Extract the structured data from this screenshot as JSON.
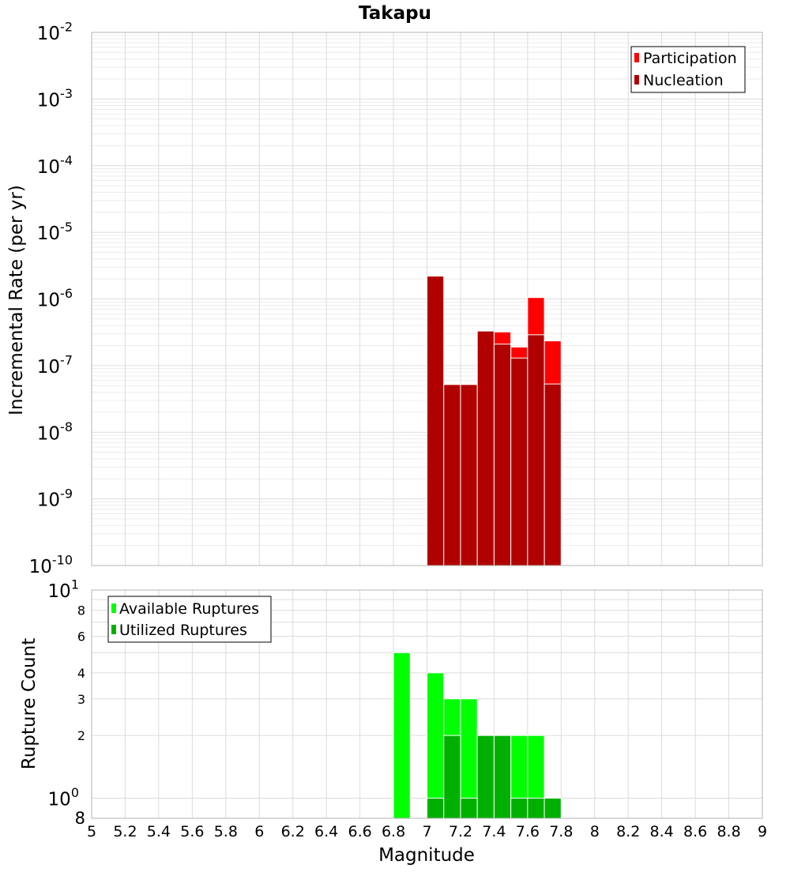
{
  "chart_data": [
    {
      "type": "bar",
      "title": "Takapu",
      "ylabel": "Incremental Rate (per yr)",
      "xlabel": "",
      "yscale": "log",
      "ylim": [
        1e-10,
        0.01
      ],
      "xlim": [
        5,
        9
      ],
      "bin_width": 0.1,
      "y_ticks": [
        {
          "base": "10",
          "exp": "-10"
        },
        {
          "base": "10",
          "exp": "-9"
        },
        {
          "base": "10",
          "exp": "-8"
        },
        {
          "base": "10",
          "exp": "-7"
        },
        {
          "base": "10",
          "exp": "-6"
        },
        {
          "base": "10",
          "exp": "-5"
        },
        {
          "base": "10",
          "exp": "-4"
        },
        {
          "base": "10",
          "exp": "-3"
        },
        {
          "base": "10",
          "exp": "-2"
        }
      ],
      "legend_position": "top-right",
      "grid": true,
      "x": [
        7.05,
        7.15,
        7.25,
        7.35,
        7.45,
        7.55,
        7.65,
        7.75
      ],
      "series": [
        {
          "name": "Participation",
          "color": "#ff0000",
          "values": [
            2.2e-06,
            5.2e-08,
            5.2e-08,
            3.3e-07,
            3.2e-07,
            1.9e-07,
            1.05e-06,
            2.35e-07
          ]
        },
        {
          "name": "Nucleation",
          "color": "#b00000",
          "values": [
            2.2e-06,
            5.2e-08,
            5.2e-08,
            3.3e-07,
            2.1e-07,
            1.3e-07,
            2.9e-07,
            5.3e-08
          ]
        }
      ]
    },
    {
      "type": "bar",
      "title": "",
      "ylabel": "Rupture Count",
      "xlabel": "Magnitude",
      "yscale": "log",
      "ylim": [
        0.8,
        10
      ],
      "xlim": [
        5,
        9
      ],
      "bin_width": 0.1,
      "legend_position": "top-left",
      "grid": true,
      "x_ticks": [
        "5",
        "5.2",
        "5.4",
        "5.6",
        "5.8",
        "6",
        "6.2",
        "6.4",
        "6.6",
        "6.8",
        "7",
        "7.2",
        "7.4",
        "7.6",
        "7.8",
        "8",
        "8.2",
        "8.4",
        "8.6",
        "8.8",
        "9"
      ],
      "y_ticks_labeled": [
        {
          "value": 1,
          "base": "10",
          "exp": "0",
          "size": "large"
        },
        {
          "value": 2,
          "label": "2"
        },
        {
          "value": 3,
          "label": "3"
        },
        {
          "value": 4,
          "label": "4"
        },
        {
          "value": 6,
          "label": "6"
        },
        {
          "value": 8,
          "label": "8"
        },
        {
          "value": 10,
          "base": "10",
          "exp": "1",
          "size": "large"
        }
      ],
      "y_bottom_label": "8",
      "x": [
        6.85,
        7.05,
        7.15,
        7.25,
        7.35,
        7.45,
        7.55,
        7.65,
        7.75
      ],
      "series": [
        {
          "name": "Available Ruptures",
          "color": "#00ff00",
          "values": [
            5,
            4,
            3,
            3,
            2,
            2,
            2,
            2,
            1
          ]
        },
        {
          "name": "Utilized Ruptures",
          "color": "#00b000",
          "values": [
            0,
            1,
            2,
            1,
            2,
            2,
            1,
            1,
            1
          ]
        }
      ]
    }
  ]
}
